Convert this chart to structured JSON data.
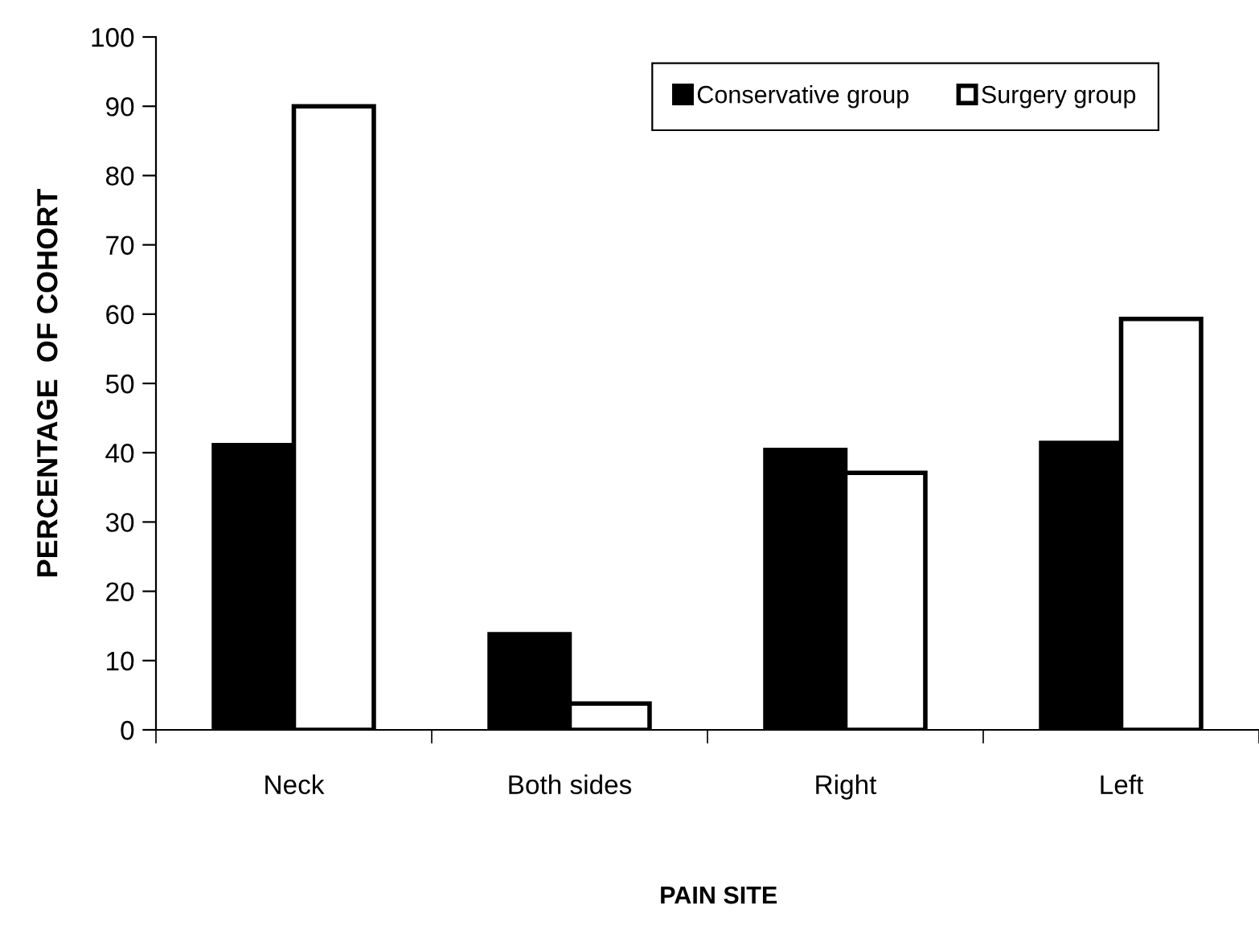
{
  "chart_data": {
    "type": "bar",
    "xlabel": "PAIN SITE",
    "ylabel": "PERCENTAGE  OF COHORT",
    "categories": [
      "Neck",
      "Both sides",
      "Right",
      "Left"
    ],
    "series": [
      {
        "name": "Conservative group",
        "color": "#000000",
        "values": [
          41.1,
          13.8,
          40.4,
          41.4
        ]
      },
      {
        "name": "Surgery group",
        "color": "#ffffff",
        "values": [
          90.0,
          3.8,
          37.1,
          59.3
        ]
      }
    ],
    "ylim": [
      0,
      100
    ],
    "yticks": [
      0,
      10,
      20,
      30,
      40,
      50,
      60,
      70,
      80,
      90,
      100
    ],
    "grid": false,
    "legend": "top right"
  }
}
